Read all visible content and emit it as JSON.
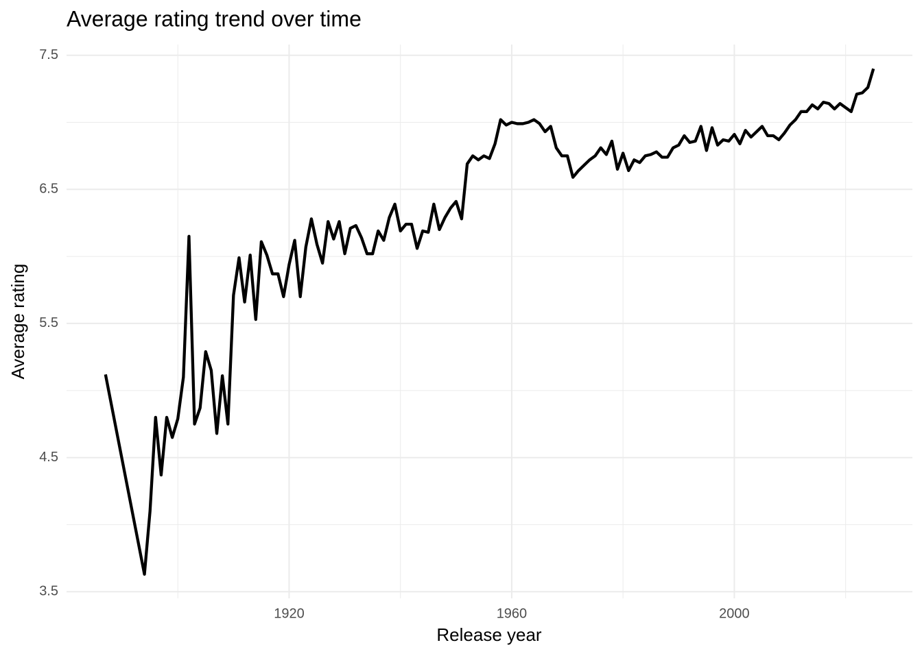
{
  "chart_data": {
    "type": "line",
    "title": "Average rating trend over time",
    "x_label": "Release year",
    "y_label": "Average rating",
    "x": [
      1887,
      1894,
      1895,
      1896,
      1897,
      1898,
      1899,
      1900,
      1901,
      1902,
      1903,
      1904,
      1905,
      1906,
      1907,
      1908,
      1909,
      1910,
      1911,
      1912,
      1913,
      1914,
      1915,
      1916,
      1917,
      1918,
      1919,
      1920,
      1921,
      1922,
      1923,
      1924,
      1925,
      1926,
      1927,
      1928,
      1929,
      1930,
      1931,
      1932,
      1933,
      1934,
      1935,
      1936,
      1937,
      1938,
      1939,
      1940,
      1941,
      1942,
      1943,
      1944,
      1945,
      1946,
      1947,
      1948,
      1949,
      1950,
      1951,
      1952,
      1953,
      1954,
      1955,
      1956,
      1957,
      1958,
      1959,
      1960,
      1961,
      1962,
      1963,
      1964,
      1965,
      1966,
      1967,
      1968,
      1969,
      1970,
      1971,
      1972,
      1973,
      1974,
      1975,
      1976,
      1977,
      1978,
      1979,
      1980,
      1981,
      1982,
      1983,
      1984,
      1985,
      1986,
      1987,
      1988,
      1989,
      1990,
      1991,
      1992,
      1993,
      1994,
      1995,
      1996,
      1997,
      1998,
      1999,
      2000,
      2001,
      2002,
      2003,
      2004,
      2005,
      2006,
      2007,
      2008,
      2009,
      2010,
      2011,
      2012,
      2013,
      2014,
      2015,
      2016,
      2017,
      2018,
      2019,
      2020,
      2021,
      2022,
      2023,
      2024,
      2025
    ],
    "series": [
      {
        "name": "Average rating",
        "color": "#000000",
        "values": [
          5.12,
          3.63,
          4.1,
          4.8,
          4.37,
          4.8,
          4.65,
          4.79,
          5.1,
          6.15,
          4.75,
          4.87,
          5.29,
          5.15,
          4.68,
          5.11,
          4.75,
          5.71,
          5.99,
          5.66,
          6.01,
          5.53,
          6.11,
          6.01,
          5.87,
          5.87,
          5.7,
          5.94,
          6.12,
          5.7,
          6.07,
          6.28,
          6.09,
          5.95,
          6.26,
          6.13,
          6.26,
          6.02,
          6.21,
          6.23,
          6.14,
          6.02,
          6.02,
          6.19,
          6.12,
          6.29,
          6.39,
          6.19,
          6.24,
          6.24,
          6.06,
          6.19,
          6.18,
          6.39,
          6.2,
          6.29,
          6.36,
          6.41,
          6.28,
          6.69,
          6.75,
          6.72,
          6.75,
          6.73,
          6.84,
          7.02,
          6.98,
          7.0,
          6.99,
          6.99,
          7.0,
          7.02,
          6.99,
          6.93,
          6.97,
          6.81,
          6.75,
          6.75,
          6.59,
          6.64,
          6.68,
          6.72,
          6.75,
          6.81,
          6.76,
          6.86,
          6.65,
          6.77,
          6.64,
          6.72,
          6.7,
          6.75,
          6.76,
          6.78,
          6.74,
          6.74,
          6.81,
          6.83,
          6.9,
          6.85,
          6.86,
          6.97,
          6.79,
          6.96,
          6.83,
          6.87,
          6.86,
          6.91,
          6.84,
          6.94,
          6.89,
          6.93,
          6.97,
          6.9,
          6.9,
          6.87,
          6.92,
          6.98,
          7.02,
          7.08,
          7.08,
          7.13,
          7.1,
          7.15,
          7.14,
          7.1,
          7.14,
          7.11,
          7.08,
          7.21,
          7.22,
          7.26,
          7.4
        ]
      }
    ],
    "xlim": [
      1880,
      2032
    ],
    "ylim": [
      3.45,
      7.58
    ],
    "xticks": [
      1920,
      1960,
      2000
    ],
    "x_minor_ticks": [
      1900,
      1940,
      1980,
      2020
    ],
    "yticks": [
      3.5,
      4.5,
      5.5,
      6.5,
      7.5
    ],
    "y_minor_ticks": [
      4,
      5,
      6,
      7
    ],
    "grid": true
  }
}
